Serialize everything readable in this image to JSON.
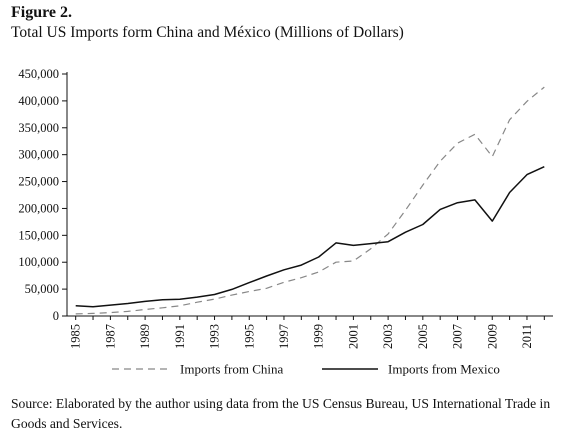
{
  "figure_label": "Figure 2.",
  "title": "Total US Imports form China and México (Millions of Dollars)",
  "source": "Source: Elaborated by the author using data from the US Census Bureau, US International Trade in Goods and Services.",
  "chart_data": {
    "type": "line",
    "title": "Total US Imports form China and México (Millions of Dollars)",
    "xlabel": "",
    "ylabel": "",
    "x": [
      1985,
      1986,
      1987,
      1988,
      1989,
      1990,
      1991,
      1992,
      1993,
      1994,
      1995,
      1996,
      1997,
      1998,
      1999,
      2000,
      2001,
      2002,
      2003,
      2004,
      2005,
      2006,
      2007,
      2008,
      2009,
      2010,
      2011,
      2012
    ],
    "xlim": [
      1984.5,
      2012.5
    ],
    "ylim": [
      0,
      450000
    ],
    "x_tick_labels": [
      "1985",
      "1987",
      "1989",
      "1991",
      "1993",
      "1995",
      "1997",
      "1999",
      "2001",
      "2003",
      "2005",
      "2007",
      "2009",
      "2011"
    ],
    "y_tick_labels": [
      "0",
      "50,000",
      "100,000",
      "150,000",
      "200,000",
      "250,000",
      "300,000",
      "350,000",
      "400,000",
      "450,000"
    ],
    "y_ticks": [
      0,
      50000,
      100000,
      150000,
      200000,
      250000,
      300000,
      350000,
      400000,
      450000
    ],
    "grid": false,
    "legend_position": "bottom",
    "series": [
      {
        "name": "Imports from China",
        "style": "dashed",
        "color": "#888888",
        "values": [
          3900,
          4800,
          6300,
          8500,
          12000,
          15200,
          19000,
          25700,
          31500,
          38800,
          45500,
          51500,
          62600,
          71200,
          81800,
          100000,
          102300,
          125200,
          152400,
          196700,
          243500,
          287800,
          321400,
          337800,
          296400,
          364900,
          399300,
          425600
        ]
      },
      {
        "name": "Imports from Mexico",
        "style": "solid",
        "color": "#111111",
        "values": [
          19100,
          17300,
          20300,
          23300,
          27200,
          30200,
          31200,
          35200,
          39900,
          49500,
          62100,
          74300,
          85900,
          94600,
          109700,
          135900,
          131300,
          134600,
          138100,
          155900,
          170100,
          198300,
          210700,
          215900,
          176500,
          229700,
          262900,
          277600
        ]
      }
    ]
  }
}
